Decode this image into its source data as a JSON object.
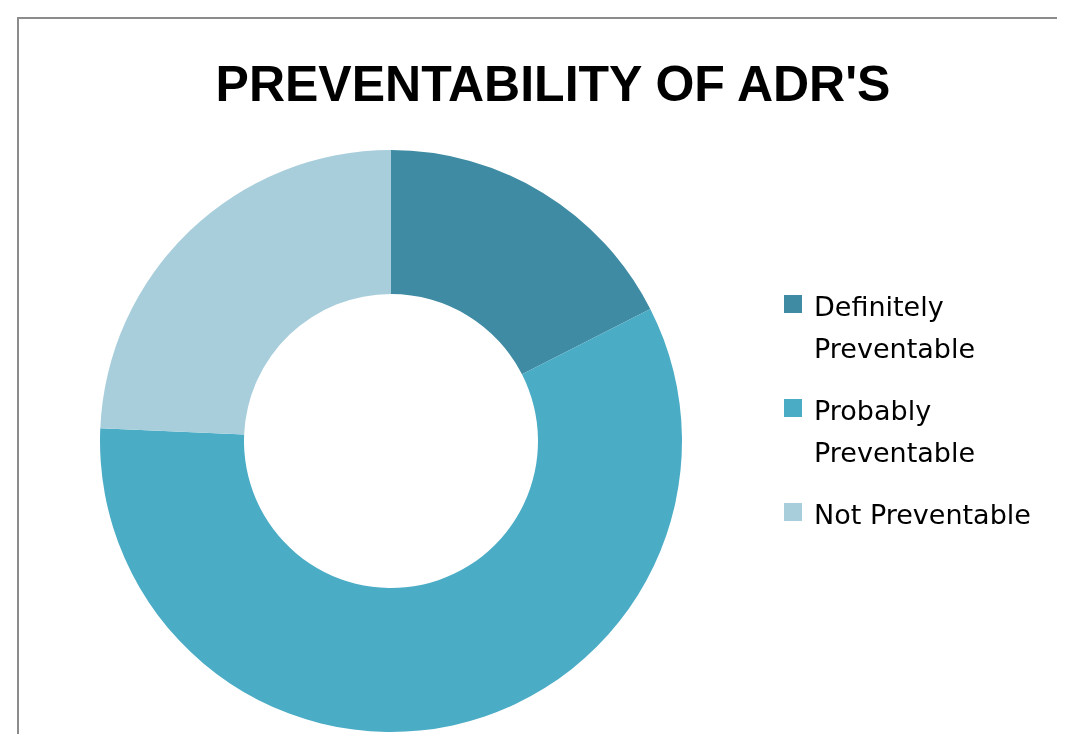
{
  "chart_data": {
    "type": "donut",
    "title": "PREVENTABILITY OF ADR'S",
    "categories": [
      "Definitely Preventable",
      "Probably Preventable",
      "Not Preventable"
    ],
    "values": [
      17.5,
      58.2,
      24.3
    ],
    "colors": [
      "#3e8ba3",
      "#4bacc6",
      "#a8cedc"
    ],
    "legend": "right"
  }
}
